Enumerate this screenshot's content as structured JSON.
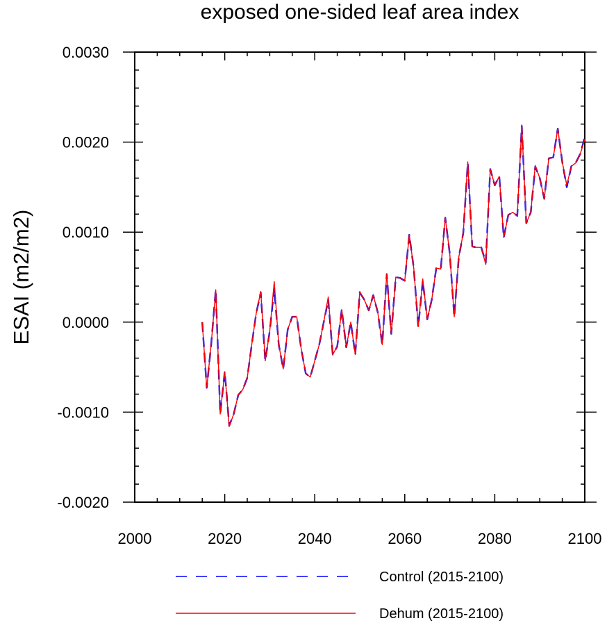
{
  "colors": {
    "control": "#0000ff",
    "dehum": "#ff0000",
    "axis": "#000000"
  },
  "chart_data": {
    "type": "line",
    "title": "exposed one-sided leaf area index",
    "xlabel": "",
    "ylabel": "ESAI  (m2/m2)",
    "xlim": [
      2000,
      2100
    ],
    "ylim": [
      -0.002,
      0.003
    ],
    "x_ticks": [
      2000,
      2020,
      2040,
      2060,
      2080,
      2100
    ],
    "x_tick_labels": [
      "2000",
      "2020",
      "2040",
      "2060",
      "2080",
      "2100"
    ],
    "y_ticks": [
      -0.002,
      -0.001,
      0.0,
      0.001,
      0.002,
      0.003
    ],
    "y_tick_labels": [
      "-0.0020",
      "-0.0010",
      "0.0000",
      "0.0010",
      "0.0020",
      "0.0030"
    ],
    "x": [
      2015,
      2016,
      2017,
      2018,
      2019,
      2020,
      2021,
      2022,
      2023,
      2024,
      2025,
      2026,
      2027,
      2028,
      2029,
      2030,
      2031,
      2032,
      2033,
      2034,
      2035,
      2036,
      2037,
      2038,
      2039,
      2040,
      2041,
      2042,
      2043,
      2044,
      2045,
      2046,
      2047,
      2048,
      2049,
      2050,
      2051,
      2052,
      2053,
      2054,
      2055,
      2056,
      2057,
      2058,
      2059,
      2060,
      2061,
      2062,
      2063,
      2064,
      2065,
      2066,
      2067,
      2068,
      2069,
      2070,
      2071,
      2072,
      2073,
      2074,
      2075,
      2076,
      2077,
      2078,
      2079,
      2080,
      2081,
      2082,
      2083,
      2084,
      2085,
      2086,
      2087,
      2088,
      2089,
      2090,
      2091,
      2092,
      2093,
      2094,
      2095,
      2096,
      2097,
      2098,
      2099,
      2100
    ],
    "series": [
      {
        "name": "Control (2015-2100)",
        "style": "dashed",
        "values": [
          0.0,
          -0.00073,
          -0.00024,
          0.00036,
          -0.00102,
          -0.00055,
          -0.00115,
          -0.00102,
          -0.00081,
          -0.00075,
          -0.00062,
          -0.00025,
          0.0001,
          0.00033,
          -0.00043,
          -0.0001,
          0.00038,
          -0.00025,
          -0.00052,
          -8e-05,
          6e-05,
          6e-05,
          -0.0003,
          -0.00057,
          -0.00061,
          -0.00043,
          -0.00025,
          0.0,
          0.00025,
          -0.00036,
          -0.00027,
          0.00014,
          -0.00028,
          0.0,
          -0.00036,
          0.00033,
          0.00025,
          0.00013,
          0.0003,
          0.00011,
          -0.00025,
          0.00053,
          -0.00013,
          0.0005,
          0.00049,
          0.00046,
          0.00097,
          0.0006,
          -5e-05,
          0.00046,
          3e-05,
          0.00025,
          0.0006,
          0.00059,
          0.00116,
          0.00076,
          6e-05,
          0.00072,
          0.00099,
          0.00177,
          0.00084,
          0.00083,
          0.00083,
          0.00066,
          0.0017,
          0.00152,
          0.00162,
          0.00094,
          0.00119,
          0.00122,
          0.00118,
          0.00218,
          0.0011,
          0.00122,
          0.00173,
          0.0016,
          0.00137,
          0.00182,
          0.00183,
          0.00215,
          0.00178,
          0.0015,
          0.00173,
          0.00177,
          0.00187,
          0.00205
        ]
      },
      {
        "name": "Dehum (2015-2100)",
        "style": "solid",
        "values": [
          0.0,
          -0.00073,
          -0.00024,
          0.00036,
          -0.00102,
          -0.00055,
          -0.00116,
          -0.00102,
          -0.00081,
          -0.00075,
          -0.00062,
          -0.00025,
          0.0001,
          0.00034,
          -0.00043,
          -0.0001,
          0.00045,
          -0.00025,
          -0.00052,
          -8e-05,
          6e-05,
          6e-05,
          -0.0003,
          -0.00057,
          -0.00061,
          -0.00043,
          -0.00025,
          0.0,
          0.00028,
          -0.00036,
          -0.00027,
          0.00014,
          -0.00028,
          0.0,
          -0.00036,
          0.00034,
          0.00025,
          0.00013,
          0.0003,
          0.00011,
          -0.00025,
          0.00054,
          -0.00013,
          0.0005,
          0.00049,
          0.00046,
          0.00097,
          0.0006,
          -5e-05,
          0.00048,
          3e-05,
          0.00025,
          0.0006,
          0.00059,
          0.00116,
          0.00076,
          6e-05,
          0.00072,
          0.00099,
          0.00178,
          0.00084,
          0.00083,
          0.00083,
          0.00064,
          0.0017,
          0.00152,
          0.00162,
          0.00094,
          0.00119,
          0.00122,
          0.00118,
          0.00219,
          0.0011,
          0.00122,
          0.00174,
          0.0016,
          0.00137,
          0.00182,
          0.00183,
          0.00215,
          0.00178,
          0.00152,
          0.00173,
          0.00177,
          0.00187,
          0.00203
        ]
      }
    ],
    "legend": [
      "Control (2015-2100)",
      "Dehum (2015-2100)"
    ],
    "legend_position": "bottom",
    "grid": false
  }
}
